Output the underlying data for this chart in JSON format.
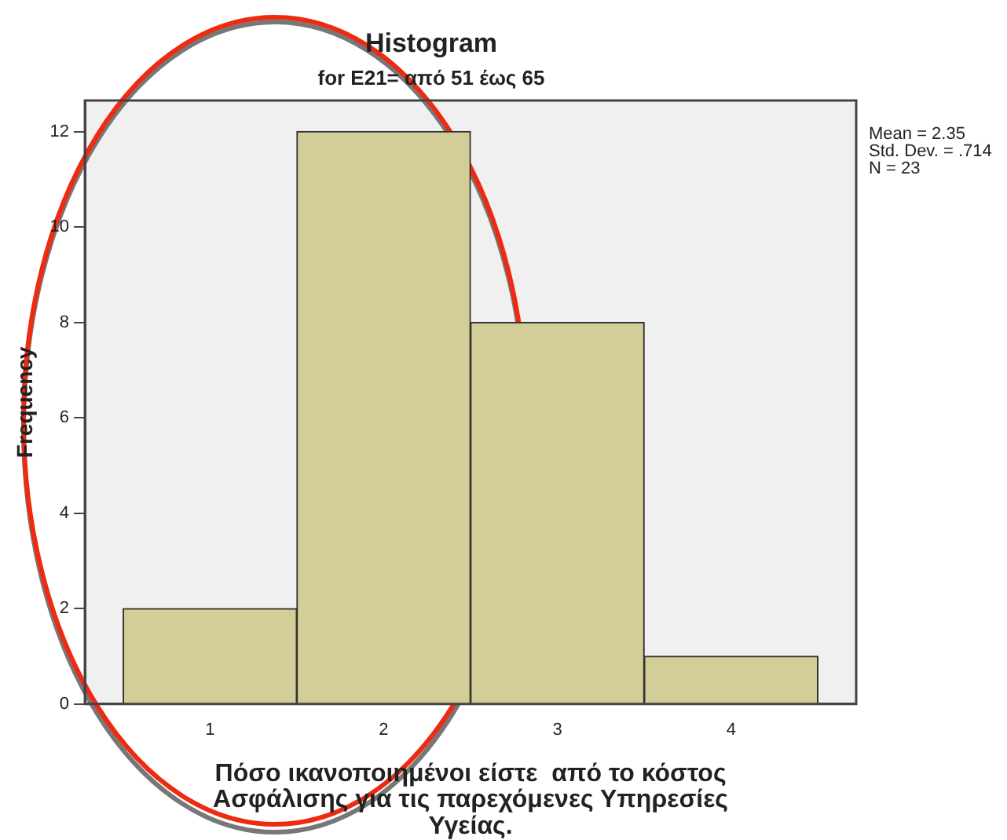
{
  "chart_data": {
    "type": "histogram",
    "title": "Histogram",
    "subtitle": "for E21= από 51 έως 65",
    "xlabel": "Πόσο ικανοποιημένοι είστε  από το κόστος Ασφάλισης για τις παρεχόμενες Υπηρεσίες Υγείας.",
    "ylabel": "Frequency",
    "bins": [
      0.5,
      1.5,
      2.5,
      3.5,
      4.5
    ],
    "values": [
      2,
      12,
      8,
      1
    ],
    "color": "#d3ce97",
    "xlim": [
      0.28,
      4.72
    ],
    "xticks": [
      1,
      2,
      3,
      4
    ],
    "ylim": [
      0,
      12.65
    ],
    "yticks": [
      0,
      2,
      4,
      6,
      8,
      10,
      12
    ],
    "annotations": [
      "Mean = 2.35",
      "Std. Dev. = .714",
      "N = 23"
    ]
  }
}
